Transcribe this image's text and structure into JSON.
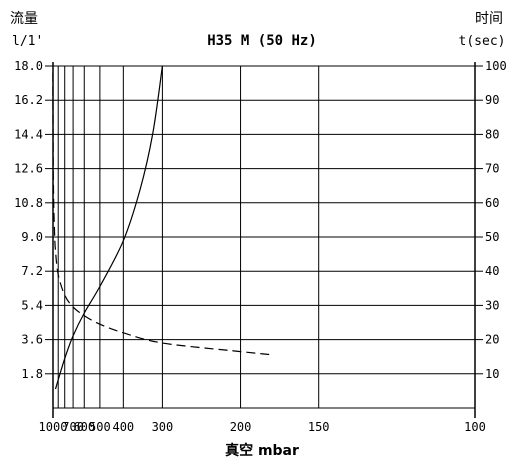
{
  "chart_data": {
    "type": "line",
    "title": "H35 M (50 Hz)",
    "left_axis": {
      "label_top": "流量",
      "label_unit": "l/1'",
      "ticks": [
        "1.8",
        "3.6",
        "5.4",
        "7.2",
        "9.0",
        "10.8",
        "12.6",
        "14.4",
        "16.2",
        "18.0"
      ],
      "ylim": [
        0,
        18.0
      ]
    },
    "right_axis": {
      "label_top": "时间",
      "label_unit": "t(sec)",
      "ticks": [
        "10",
        "20",
        "30",
        "40",
        "50",
        "60",
        "70",
        "80",
        "90",
        "100"
      ],
      "ylim": [
        0,
        100
      ]
    },
    "x_axis": {
      "label": "真空 mbar",
      "tick_labels": [
        "1000",
        "700",
        "600",
        "500",
        "400",
        "300",
        "200",
        "150",
        "100"
      ],
      "scale": "reciprocal",
      "grid_values": [
        1000,
        900,
        800,
        700,
        600,
        500,
        400,
        300,
        200,
        150,
        100
      ]
    },
    "grid": true,
    "series": [
      {
        "axis": "left",
        "style": "solid",
        "points": [
          [
            950,
            1.0
          ],
          [
            800,
            2.6
          ],
          [
            700,
            3.8
          ],
          [
            600,
            5.0
          ],
          [
            500,
            6.4
          ],
          [
            400,
            8.8
          ],
          [
            350,
            11.5
          ],
          [
            320,
            14.4
          ],
          [
            300,
            18.0
          ]
        ]
      },
      {
        "axis": "right",
        "style": "dashed",
        "points": [
          [
            1003,
            98
          ],
          [
            1000,
            85
          ],
          [
            995,
            70
          ],
          [
            985,
            60
          ],
          [
            970,
            52
          ],
          [
            950,
            46
          ],
          [
            900,
            39
          ],
          [
            800,
            33
          ],
          [
            700,
            29.5
          ],
          [
            600,
            27
          ],
          [
            500,
            24.5
          ],
          [
            400,
            22
          ],
          [
            300,
            19
          ],
          [
            200,
            16.5
          ],
          [
            175,
            15.5
          ]
        ]
      }
    ]
  }
}
